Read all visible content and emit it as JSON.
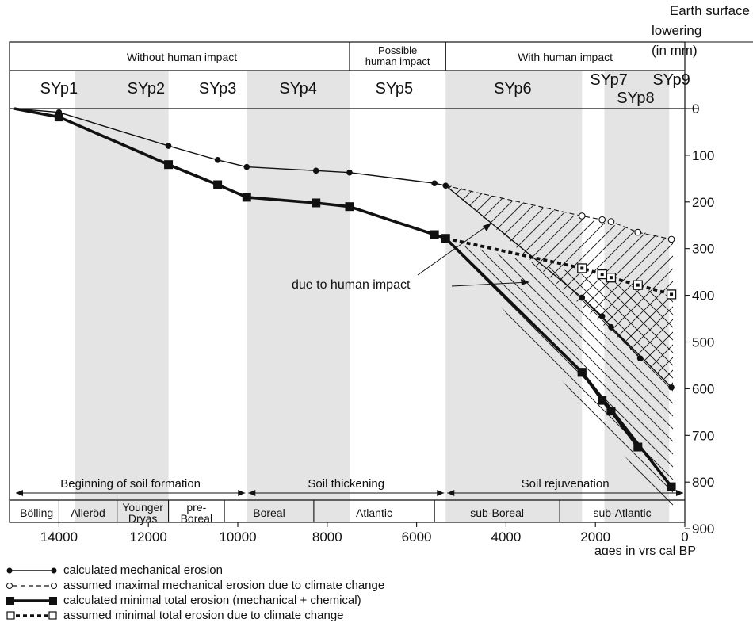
{
  "chart_data": {
    "type": "line",
    "x_axis": {
      "label": "ages in yrs cal BP",
      "range": [
        15000,
        0
      ],
      "ticks": [
        14000,
        12000,
        10000,
        8000,
        6000,
        4000,
        2000,
        0
      ],
      "tick_labels": [
        "14000",
        "12000",
        "10000",
        "8000",
        "6000",
        "4000",
        "2000",
        "0"
      ]
    },
    "y_axis": {
      "label_lines": [
        "Earth surface",
        "lowering",
        "(in mm)"
      ],
      "range": [
        0,
        900
      ],
      "ticks": [
        0,
        100,
        200,
        300,
        400,
        500,
        600,
        700,
        800,
        900
      ],
      "tick_labels": [
        "0",
        "100",
        "200",
        "300",
        "400",
        "500",
        "600",
        "700",
        "800",
        "900"
      ]
    },
    "grid": false,
    "shaded_bands": [
      [
        13650,
        11550
      ],
      [
        9800,
        7500
      ],
      [
        5350,
        2300
      ],
      [
        1800,
        350
      ]
    ],
    "impact_header": [
      {
        "label_lines": [
          "Without human impact"
        ],
        "from": 15000,
        "to": 7500
      },
      {
        "label_lines": [
          "Possible",
          "human impact"
        ],
        "from": 7500,
        "to": 5350
      },
      {
        "label_lines": [
          "With human impact"
        ],
        "from": 5350,
        "to": 0
      }
    ],
    "profiles": [
      {
        "label": "SYp1",
        "x": 14000
      },
      {
        "label": "SYp2",
        "x": 12050
      },
      {
        "label": "SYp3",
        "x": 10450
      },
      {
        "label": "SYp4",
        "x": 8650
      },
      {
        "label": "SYp5",
        "x": 6500
      },
      {
        "label": "SYp6",
        "x": 3850
      },
      {
        "label": "SYp7",
        "x": 1700
      },
      {
        "label": "SYp8",
        "x": 1100
      },
      {
        "label": "SYp9",
        "x": 300
      }
    ],
    "phases": [
      {
        "label": "Beginning of soil formation",
        "from": 15000,
        "to": 9800
      },
      {
        "label": "Soil thickening",
        "from": 9800,
        "to": 5350
      },
      {
        "label": "Soil rejuvenation",
        "from": 5350,
        "to": 0
      }
    ],
    "periods": [
      {
        "label_lines": [
          "Bölling"
        ],
        "from": 15000,
        "to": 14000
      },
      {
        "label_lines": [
          "Alleröd"
        ],
        "from": 14000,
        "to": 12700
      },
      {
        "label_lines": [
          "Younger",
          "Dryas"
        ],
        "from": 12700,
        "to": 11550
      },
      {
        "label_lines": [
          "pre-",
          "Boreal"
        ],
        "from": 11550,
        "to": 10300
      },
      {
        "label_lines": [
          "Boreal"
        ],
        "from": 10300,
        "to": 8300
      },
      {
        "label_lines": [
          "Atlantic"
        ],
        "from": 8300,
        "to": 5600
      },
      {
        "label_lines": [
          "sub-Boreal"
        ],
        "from": 5600,
        "to": 2800
      },
      {
        "label_lines": [
          "sub-Atlantic"
        ],
        "from": 2800,
        "to": 0
      }
    ],
    "annotation": {
      "text": "due to human impact"
    },
    "series": [
      {
        "name": "calculated mechanical erosion",
        "style": "thin-solid-filled-circle",
        "color": "#111111",
        "points": [
          [
            15000,
            0
          ],
          [
            14000,
            8
          ],
          [
            11550,
            80
          ],
          [
            10450,
            110
          ],
          [
            9800,
            125
          ],
          [
            8250,
            133
          ],
          [
            7500,
            137
          ],
          [
            5600,
            160
          ],
          [
            5350,
            165
          ],
          [
            2300,
            405
          ],
          [
            300,
            597
          ]
        ]
      },
      {
        "name": "calculated mechanical erosion",
        "style": "thin-solid-filled-circle",
        "color": "#111111",
        "points": [
          [
            2300,
            405
          ],
          [
            1850,
            445
          ],
          [
            1650,
            468
          ],
          [
            1000,
            535
          ]
        ]
      },
      {
        "name": "assumed maximal mechanical erosion due to climate change",
        "style": "dashed-open-circle",
        "color": "#111111",
        "points": [
          [
            5350,
            165
          ],
          [
            2300,
            230
          ],
          [
            1850,
            238
          ],
          [
            1650,
            242
          ],
          [
            1050,
            265
          ],
          [
            300,
            280
          ]
        ]
      },
      {
        "name": "calculated minimal total erosion (mechanical + chemical)",
        "style": "thick-solid-filled-square",
        "color": "#111111",
        "points": [
          [
            15000,
            0
          ],
          [
            14000,
            18
          ],
          [
            11550,
            120
          ],
          [
            10450,
            163
          ],
          [
            9800,
            190
          ],
          [
            8250,
            202
          ],
          [
            7500,
            210
          ],
          [
            5600,
            270
          ],
          [
            5350,
            278
          ],
          [
            2300,
            565
          ],
          [
            300,
            810
          ]
        ]
      },
      {
        "name": "calculated minimal total erosion (mechanical + chemical)",
        "style": "thick-solid-filled-square",
        "color": "#111111",
        "points": [
          [
            2300,
            565
          ],
          [
            1850,
            625
          ],
          [
            1650,
            648
          ],
          [
            1050,
            725
          ]
        ]
      },
      {
        "name": "assumed minimal total erosion due to climate change",
        "style": "thick-dotted-open-square",
        "color": "#111111",
        "points": [
          [
            5350,
            278
          ],
          [
            2300,
            342
          ],
          [
            1850,
            355
          ],
          [
            1650,
            362
          ],
          [
            1050,
            378
          ],
          [
            300,
            398
          ]
        ]
      }
    ],
    "legend": [
      {
        "style": "thin-solid-filled-circle",
        "label": "calculated mechanical erosion"
      },
      {
        "style": "dashed-open-circle",
        "label": "assumed maximal mechanical erosion due to climate change"
      },
      {
        "style": "thick-solid-filled-square",
        "label": "calculated minimal total erosion (mechanical + chemical)"
      },
      {
        "style": "thick-dotted-open-square",
        "label": "assumed minimal total erosion due to climate change"
      }
    ],
    "legend_position": "bottom-left"
  }
}
